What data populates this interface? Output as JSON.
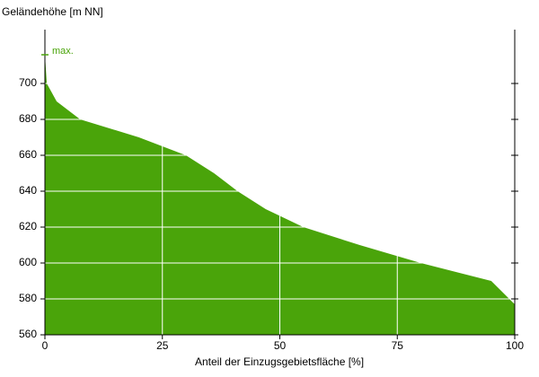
{
  "chart_data": {
    "type": "area",
    "ylabel": "Geländehöhe [m NN]",
    "xlabel": "Anteil der Einzugsgebietsfläche [%]",
    "annotation": "max.",
    "color": "#4aa40a",
    "grid": true,
    "x": [
      0,
      0.4,
      2.5,
      7.5,
      20,
      30,
      36,
      41,
      47,
      55,
      67,
      80,
      95,
      100
    ],
    "values": [
      716,
      700,
      690,
      680,
      670,
      660,
      650,
      640,
      630,
      620,
      610,
      600,
      590,
      577
    ],
    "xlim": [
      0,
      100
    ],
    "xticks": [
      0,
      25,
      50,
      75,
      100
    ],
    "ylim": [
      560,
      730
    ],
    "yticks": [
      560,
      580,
      600,
      620,
      640,
      660,
      680,
      700
    ]
  }
}
